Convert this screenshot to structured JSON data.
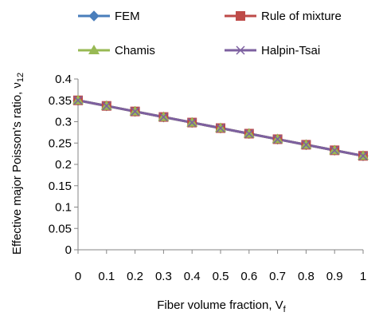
{
  "chart_data": {
    "type": "line",
    "title": "",
    "xlabel": "Fiber volume fraction, V",
    "xlabel_sub": "f",
    "ylabel": "Effective major Poisson's ratio, ν",
    "ylabel_sub": "12",
    "x": [
      0,
      0.1,
      0.2,
      0.3,
      0.4,
      0.5,
      0.6,
      0.7,
      0.8,
      0.9,
      1
    ],
    "x_tick_labels": [
      "0",
      "0.1",
      "0.2",
      "0.3",
      "0.4",
      "0.5",
      "0.6",
      "0.7",
      "0.8",
      "0.9",
      "1"
    ],
    "xlim": [
      0,
      1
    ],
    "ylim": [
      0,
      0.4
    ],
    "y_ticks": [
      0,
      0.05,
      0.1,
      0.15,
      0.2,
      0.25,
      0.3,
      0.35,
      0.4
    ],
    "y_tick_labels": [
      "0",
      "0.05",
      "0.1",
      "0.15",
      "0.2",
      "0.25",
      "0.3",
      "0.35",
      "0.4"
    ],
    "grid": false,
    "legend_position": "top",
    "series": [
      {
        "name": "FEM",
        "color": "#4a7ebb",
        "marker": "diamond",
        "values": [
          0.35,
          0.337,
          0.324,
          0.311,
          0.298,
          0.285,
          0.272,
          0.259,
          0.246,
          0.233,
          0.22
        ]
      },
      {
        "name": "Rule of mixture",
        "color": "#be4b48",
        "marker": "square",
        "values": [
          0.35,
          0.337,
          0.324,
          0.311,
          0.298,
          0.285,
          0.272,
          0.259,
          0.246,
          0.233,
          0.22
        ]
      },
      {
        "name": "Chamis",
        "color": "#98b954",
        "marker": "triangle",
        "values": [
          0.35,
          0.337,
          0.324,
          0.311,
          0.298,
          0.285,
          0.272,
          0.259,
          0.246,
          0.233,
          0.22
        ]
      },
      {
        "name": "Halpin-Tsai",
        "color": "#7d60a0",
        "marker": "x",
        "values": [
          0.35,
          0.337,
          0.324,
          0.311,
          0.298,
          0.285,
          0.272,
          0.259,
          0.246,
          0.233,
          0.22
        ]
      }
    ]
  }
}
